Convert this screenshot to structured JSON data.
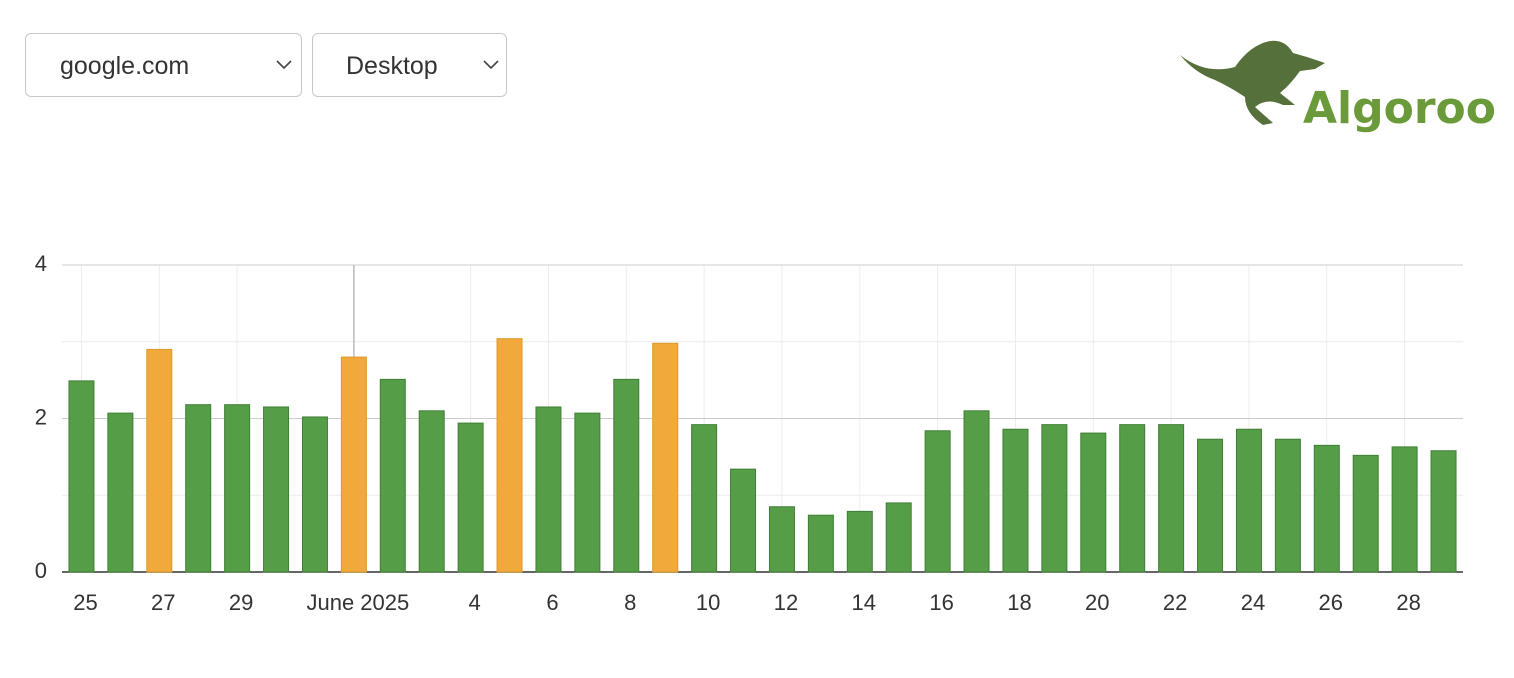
{
  "controls": {
    "site": "google.com",
    "device": "Desktop"
  },
  "logo": {
    "text": "Algoroo"
  },
  "chart_data": {
    "type": "bar",
    "categories": [
      "25",
      null,
      "27",
      null,
      "29",
      null,
      null,
      "June 2025",
      null,
      null,
      "4",
      null,
      "6",
      null,
      "8",
      null,
      "10",
      null,
      "12",
      null,
      "14",
      null,
      "16",
      null,
      "18",
      null,
      "20",
      null,
      "22",
      null,
      "24",
      null,
      "26",
      null,
      "28",
      null
    ],
    "values": [
      2.49,
      2.07,
      2.9,
      2.18,
      2.18,
      2.15,
      2.02,
      2.8,
      2.51,
      2.1,
      1.94,
      3.04,
      2.15,
      2.07,
      2.51,
      2.98,
      1.92,
      1.34,
      0.85,
      0.74,
      0.79,
      0.9,
      1.84,
      2.1,
      1.86,
      1.92,
      1.81,
      1.92,
      1.92,
      1.73,
      1.86,
      1.73,
      1.65,
      1.52,
      1.63,
      1.58
    ],
    "colors": [
      "#569d48",
      "#569d48",
      "#f0a93a",
      "#569d48",
      "#569d48",
      "#569d48",
      "#569d48",
      "#f0a93a",
      "#569d48",
      "#569d48",
      "#569d48",
      "#f0a93a",
      "#569d48",
      "#569d48",
      "#569d48",
      "#f0a93a",
      "#569d48",
      "#569d48",
      "#569d48",
      "#569d48",
      "#569d48",
      "#569d48",
      "#569d48",
      "#569d48",
      "#569d48",
      "#569d48",
      "#569d48",
      "#569d48",
      "#569d48",
      "#569d48",
      "#569d48",
      "#569d48",
      "#569d48",
      "#569d48",
      "#569d48",
      "#569d48"
    ],
    "ylim": [
      0,
      4
    ],
    "yticks": [
      0,
      2,
      4
    ],
    "minor_yticks": [
      1,
      3
    ],
    "grid": true
  }
}
